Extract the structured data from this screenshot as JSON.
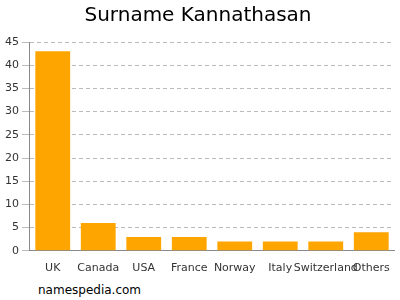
{
  "chart_data": {
    "type": "bar",
    "title": "Surname Kannathasan",
    "categories": [
      "UK",
      "Canada",
      "USA",
      "France",
      "Norway",
      "Italy",
      "Switzerland",
      "Others"
    ],
    "values": [
      43,
      6,
      3,
      3,
      2,
      2,
      2,
      4
    ],
    "color": "#ffa500",
    "ylim": [
      0,
      45
    ],
    "yticks": [
      0,
      5,
      10,
      15,
      20,
      25,
      30,
      35,
      40,
      45
    ],
    "grid": true,
    "annotations": [
      "namespedia.com"
    ]
  }
}
